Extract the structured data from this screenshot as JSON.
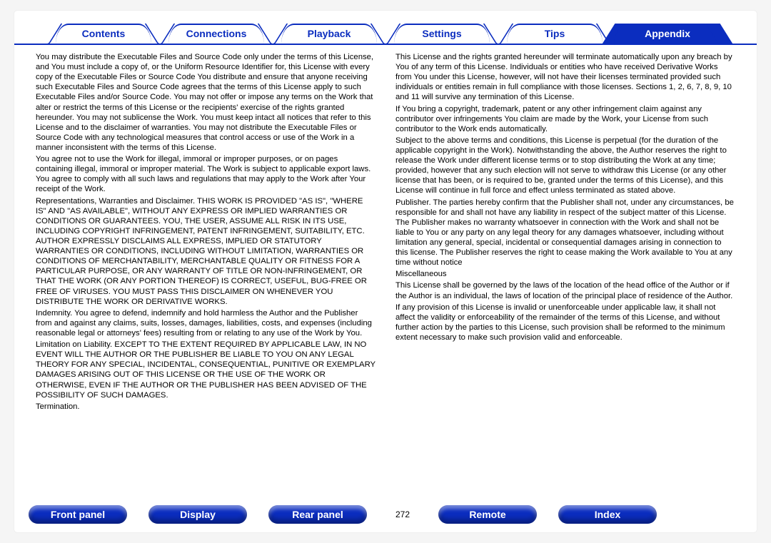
{
  "topnav": {
    "tabs": [
      {
        "label": "Contents"
      },
      {
        "label": "Connections"
      },
      {
        "label": "Playback"
      },
      {
        "label": "Settings"
      },
      {
        "label": "Tips"
      },
      {
        "label": "Appendix"
      }
    ],
    "active_index": 5
  },
  "body": {
    "left": [
      "You may distribute the Executable Files and Source Code only under the terms of this License, and You must include a copy of, or the Uniform Resource Identifier for, this License with every copy of the Executable Files or Source Code You distribute and ensure that anyone receiving such Executable Files and Source Code agrees that the terms of this License apply to such Executable Files and/or Source Code. You may not offer or impose any terms on the Work that alter or restrict the terms of this License or the recipients' exercise of the rights granted hereunder. You may not sublicense the Work. You must keep intact all notices that refer to this License and to the disclaimer of warranties. You may not distribute the Executable Files or Source Code with any technological measures that control access or use of the Work in a manner inconsistent with the terms of this License.",
      "You agree not to use the Work for illegal, immoral or improper purposes, or on pages containing illegal, immoral or improper material. The Work is subject to applicable export laws. You agree to comply with all such laws and regulations that may apply to the Work after Your receipt of the Work.",
      "Representations, Warranties and Disclaimer. THIS WORK IS PROVIDED \"AS IS\", \"WHERE IS\" AND \"AS AVAILABLE\", WITHOUT ANY EXPRESS OR IMPLIED WARRANTIES OR CONDITIONS OR GUARANTEES. YOU, THE USER, ASSUME ALL RISK IN ITS USE, INCLUDING COPYRIGHT INFRINGEMENT, PATENT INFRINGEMENT, SUITABILITY, ETC. AUTHOR EXPRESSLY DISCLAIMS ALL EXPRESS, IMPLIED OR STATUTORY WARRANTIES OR CONDITIONS, INCLUDING WITHOUT LIMITATION, WARRANTIES OR CONDITIONS OF MERCHANTABILITY, MERCHANTABLE QUALITY OR FITNESS FOR A PARTICULAR PURPOSE, OR ANY WARRANTY OF TITLE OR NON-INFRINGEMENT, OR THAT THE WORK (OR ANY PORTION THEREOF) IS CORRECT, USEFUL, BUG-FREE OR FREE OF VIRUSES. YOU MUST PASS THIS DISCLAIMER ON WHENEVER YOU DISTRIBUTE THE WORK OR DERIVATIVE WORKS.",
      "Indemnity. You agree to defend, indemnify and hold harmless the Author and the Publisher from and against any claims, suits, losses, damages, liabilities, costs, and expenses (including reasonable legal or attorneys' fees) resulting from or relating to any use of the Work by You.",
      "Limitation on Liability. EXCEPT TO THE EXTENT REQUIRED BY APPLICABLE LAW, IN NO EVENT WILL THE AUTHOR OR THE PUBLISHER BE LIABLE TO YOU ON ANY LEGAL THEORY FOR ANY SPECIAL, INCIDENTAL, CONSEQUENTIAL, PUNITIVE OR EXEMPLARY DAMAGES ARISING OUT OF THIS LICENSE OR THE USE OF THE WORK OR OTHERWISE, EVEN IF THE AUTHOR OR THE PUBLISHER HAS BEEN ADVISED OF THE POSSIBILITY OF SUCH DAMAGES.",
      "Termination."
    ],
    "right": [
      "This License and the rights granted hereunder will terminate automatically upon any breach by You of any term of this License. Individuals or entities who have received Derivative Works from You under this License, however, will not have their licenses terminated provided such individuals or entities remain in full compliance with those licenses. Sections 1, 2, 6, 7, 8, 9, 10 and 11 will survive any termination of this License.",
      "If You bring a copyright, trademark, patent or any other infringement claim against any contributor over infringements You claim are made by the Work, your License from such contributor to the Work ends automatically.",
      "Subject to the above terms and conditions, this License is perpetual (for the duration of the applicable copyright in the Work). Notwithstanding the above, the Author reserves the right to release the Work under different license terms or to stop distributing the Work at any time; provided, however that any such election will not serve to withdraw this License (or any other license that has been, or is required to be, granted under the terms of this License), and this License will continue in full force and effect unless terminated as stated above.",
      "Publisher. The parties hereby confirm that the Publisher shall not, under any circumstances, be responsible for and shall not have any liability in respect of the subject matter of this License. The Publisher makes no warranty whatsoever in connection with the Work and shall not be liable to You or any party on any legal theory for any damages whatsoever, including without limitation any general, special, incidental or consequential damages arising in connection to this license. The Publisher reserves the right to cease making the Work available to You at any time without notice",
      "Miscellaneous",
      "This License shall be governed by the laws of the location of the head office of the Author or if the Author is an individual, the laws of location of the principal place of residence of the Author.",
      "If any provision of this License is invalid or unenforceable under applicable law, it shall not affect the validity or enforceability of the remainder of the terms of this License, and without further action by the parties to this License, such provision shall be reformed to the minimum extent necessary to make such provision valid and enforceable."
    ]
  },
  "bottomnav": {
    "buttons": [
      {
        "label": "Front panel"
      },
      {
        "label": "Display"
      },
      {
        "label": "Rear panel"
      }
    ],
    "page_number": "272",
    "buttons2": [
      {
        "label": "Remote"
      },
      {
        "label": "Index"
      }
    ]
  },
  "colors": {
    "brand": "#0b2dbf",
    "page_bg": "#ffffff",
    "outer_bg": "#f5f5f5"
  }
}
